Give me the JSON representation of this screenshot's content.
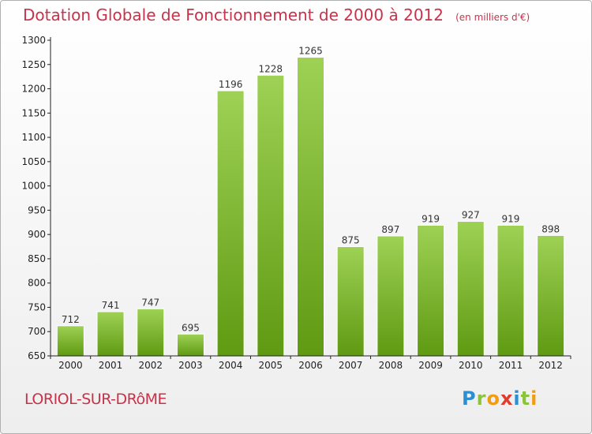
{
  "chart_data": {
    "type": "bar",
    "title": "Dotation Globale de Fonctionnement de 2000 à 2012",
    "subtitle": "(en milliers d'€)",
    "xlabel": "",
    "ylabel": "",
    "categories": [
      "2000",
      "2001",
      "2002",
      "2003",
      "2004",
      "2005",
      "2006",
      "2007",
      "2008",
      "2009",
      "2010",
      "2011",
      "2012"
    ],
    "values": [
      712,
      741,
      747,
      695,
      1196,
      1228,
      1265,
      875,
      897,
      919,
      927,
      919,
      898
    ],
    "ylim": [
      650,
      1300
    ],
    "yticks": [
      650,
      700,
      750,
      800,
      850,
      900,
      950,
      1000,
      1050,
      1100,
      1150,
      1200,
      1250,
      1300
    ],
    "grid": false,
    "data_labels": true,
    "colors": {
      "bar_light": "#9ed155",
      "bar_dark": "#5f9a12",
      "title": "#c8324a",
      "axis": "#222222"
    }
  },
  "footer": {
    "commune": "LORIOL-SUR-DRôME",
    "brand_letters": [
      {
        "char": "P",
        "color": "#2d8fd3"
      },
      {
        "char": "r",
        "color": "#8cc33c"
      },
      {
        "char": "o",
        "color": "#f39c12"
      },
      {
        "char": "x",
        "color": "#e23b2e"
      },
      {
        "char": "i",
        "color": "#2d8fd3"
      },
      {
        "char": "t",
        "color": "#8cc33c"
      },
      {
        "char": "i",
        "color": "#f39c12"
      }
    ]
  }
}
